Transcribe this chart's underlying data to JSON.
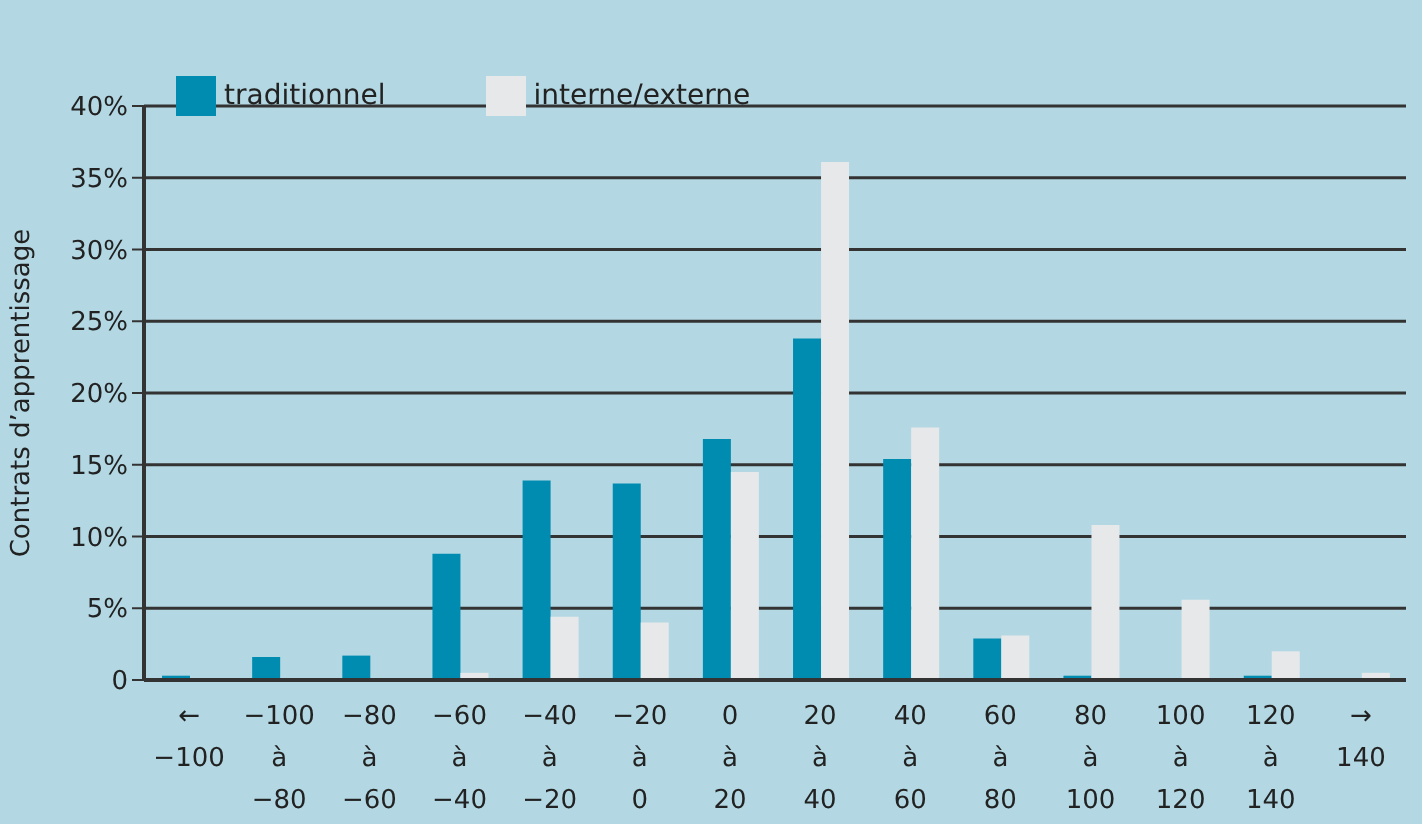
{
  "chart_data": {
    "type": "bar",
    "ylabel": "Contrats d’apprentissage",
    "categories": [
      "←\n−100",
      "−100\nà\n−80",
      "−80\nà\n−60",
      "−60\nà\n−40",
      "−40\nà\n−20",
      "−20\nà\n0",
      "0\nà\n20",
      "20\nà\n40",
      "40\nà\n60",
      "60\nà\n80",
      "80\nà\n100",
      "100\nà\n120",
      "120\nà\n140",
      "→\n140"
    ],
    "series": [
      {
        "name": "traditionnel",
        "color": "#008bb0",
        "values": [
          0.3,
          1.6,
          1.7,
          8.8,
          13.9,
          13.7,
          16.8,
          23.8,
          15.4,
          2.9,
          0.3,
          0,
          0.3,
          0
        ]
      },
      {
        "name": "interne/externe",
        "color": "#e6e8ea",
        "values": [
          0,
          0,
          0,
          0.5,
          4.4,
          4.0,
          14.5,
          36.1,
          17.6,
          3.1,
          10.8,
          5.6,
          2.0,
          0.5
        ]
      }
    ],
    "ylim": [
      0,
      40
    ],
    "yticks": [
      {
        "value": 0,
        "label": "0"
      },
      {
        "value": 5,
        "label": "5%"
      },
      {
        "value": 10,
        "label": "10%"
      },
      {
        "value": 15,
        "label": "15%"
      },
      {
        "value": 20,
        "label": "20%"
      },
      {
        "value": 25,
        "label": "25%"
      },
      {
        "value": 30,
        "label": "30%"
      },
      {
        "value": 35,
        "label": "35%"
      },
      {
        "value": 40,
        "label": "40%"
      }
    ],
    "grid": "y",
    "legend": "top left"
  }
}
